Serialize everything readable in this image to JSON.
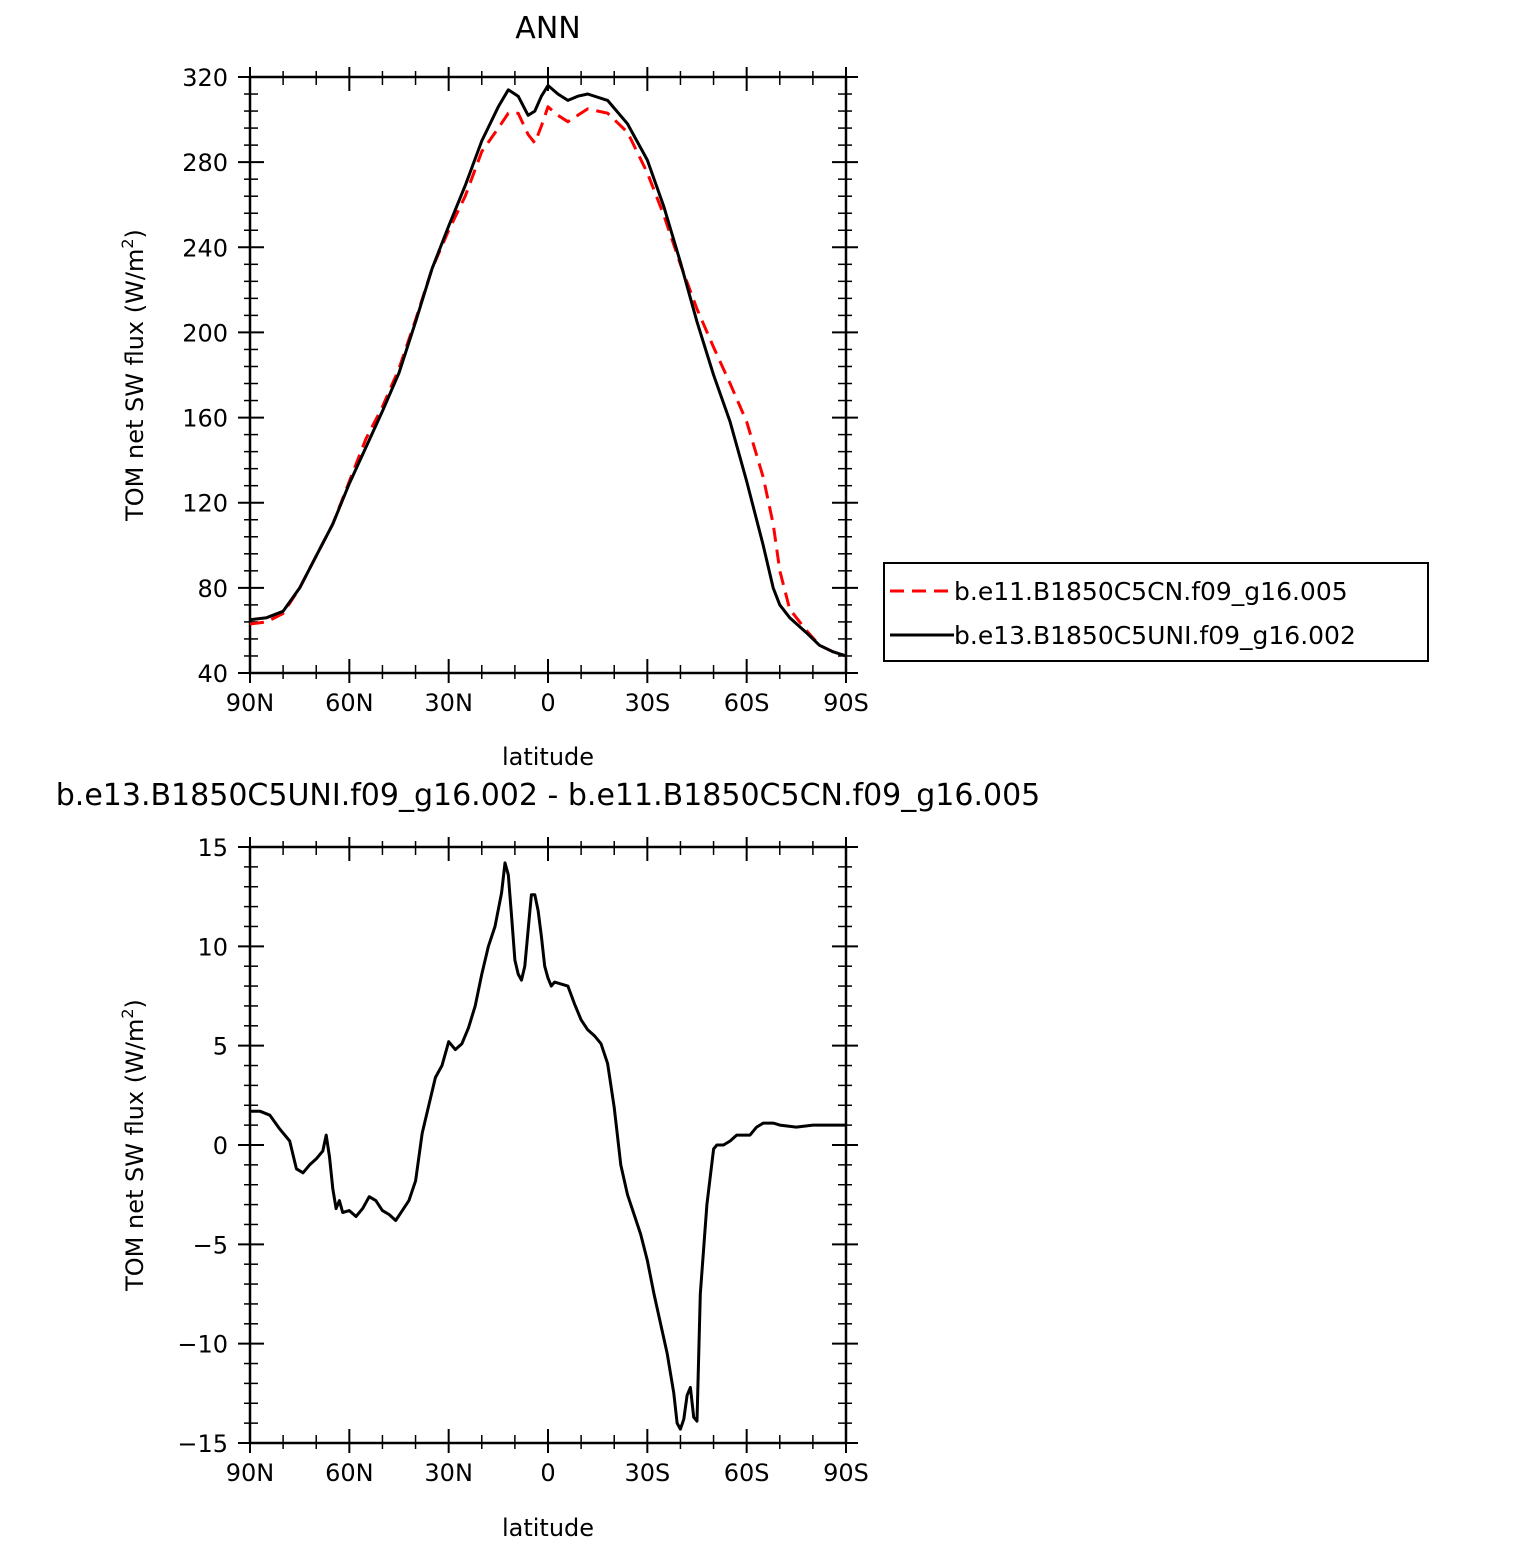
{
  "chart_data": [
    {
      "type": "line",
      "title": "ANN",
      "xlabel": "latitude",
      "ylabel": "TOM net SW flux (W/m²)",
      "ylabel_main": "TOM net SW flux (W/m",
      "ylabel_sup": "2",
      "ylabel_end": ")",
      "xlim": [
        90,
        -90
      ],
      "ylim": [
        40,
        320
      ],
      "xticks": [
        {
          "value": 90,
          "label": "90N"
        },
        {
          "value": 60,
          "label": "60N"
        },
        {
          "value": 30,
          "label": "30N"
        },
        {
          "value": 0,
          "label": "0"
        },
        {
          "value": -30,
          "label": "30S"
        },
        {
          "value": -60,
          "label": "60S"
        },
        {
          "value": -90,
          "label": "90S"
        }
      ],
      "yticks": [
        {
          "value": 320,
          "label": "320"
        },
        {
          "value": 280,
          "label": "280"
        },
        {
          "value": 240,
          "label": "240"
        },
        {
          "value": 200,
          "label": "200"
        },
        {
          "value": 160,
          "label": "160"
        },
        {
          "value": 120,
          "label": "120"
        },
        {
          "value": 80,
          "label": "80"
        },
        {
          "value": 40,
          "label": "40"
        }
      ],
      "legend_position": "right",
      "series": [
        {
          "name": "b.e11.B1850C5CN.f09_g16.005",
          "color": "#ff0000",
          "dash": "dashed",
          "points": [
            [
              90,
              63
            ],
            [
              85,
              64
            ],
            [
              80,
              68
            ],
            [
              75,
              80
            ],
            [
              70,
              95
            ],
            [
              65,
              110
            ],
            [
              60,
              130
            ],
            [
              55,
              150
            ],
            [
              50,
              165
            ],
            [
              45,
              183
            ],
            [
              40,
              206
            ],
            [
              35,
              230
            ],
            [
              30,
              248
            ],
            [
              25,
              264
            ],
            [
              20,
              285
            ],
            [
              15,
              296
            ],
            [
              12,
              303
            ],
            [
              9,
              303
            ],
            [
              6,
              293
            ],
            [
              4,
              289
            ],
            [
              2,
              297
            ],
            [
              0,
              306
            ],
            [
              -3,
              302
            ],
            [
              -6,
              299
            ],
            [
              -9,
              302
            ],
            [
              -12,
              305
            ],
            [
              -18,
              303
            ],
            [
              -24,
              294
            ],
            [
              -30,
              275
            ],
            [
              -35,
              255
            ],
            [
              -40,
              232
            ],
            [
              -45,
              211
            ],
            [
              -50,
              193
            ],
            [
              -55,
              176
            ],
            [
              -60,
              158
            ],
            [
              -65,
              132
            ],
            [
              -68,
              110
            ],
            [
              -70,
              88
            ],
            [
              -73,
              70
            ],
            [
              -78,
              60
            ],
            [
              -82,
              53
            ],
            [
              -86,
              50
            ],
            [
              -90,
              48
            ]
          ]
        },
        {
          "name": "b.e13.B1850C5UNI.f09_g16.002",
          "color": "#000000",
          "dash": "solid",
          "points": [
            [
              90,
              65
            ],
            [
              85,
              66
            ],
            [
              80,
              69
            ],
            [
              75,
              80
            ],
            [
              70,
              95
            ],
            [
              65,
              110
            ],
            [
              60,
              129
            ],
            [
              55,
              146
            ],
            [
              50,
              163
            ],
            [
              45,
              181
            ],
            [
              40,
              205
            ],
            [
              35,
              230
            ],
            [
              30,
              250
            ],
            [
              25,
              269
            ],
            [
              20,
              290
            ],
            [
              15,
              306
            ],
            [
              12,
              314
            ],
            [
              9,
              311
            ],
            [
              6,
              302
            ],
            [
              4,
              304
            ],
            [
              2,
              311
            ],
            [
              0,
              316
            ],
            [
              -3,
              312
            ],
            [
              -6,
              309
            ],
            [
              -9,
              311
            ],
            [
              -12,
              312
            ],
            [
              -18,
              309
            ],
            [
              -24,
              298
            ],
            [
              -30,
              281
            ],
            [
              -35,
              259
            ],
            [
              -40,
              233
            ],
            [
              -45,
              205
            ],
            [
              -50,
              180
            ],
            [
              -55,
              158
            ],
            [
              -60,
              130
            ],
            [
              -65,
              100
            ],
            [
              -68,
              80
            ],
            [
              -70,
              72
            ],
            [
              -73,
              66
            ],
            [
              -78,
              59
            ],
            [
              -82,
              53
            ],
            [
              -86,
              50
            ],
            [
              -90,
              48
            ]
          ]
        }
      ]
    },
    {
      "type": "line",
      "title": "b.e13.B1850C5UNI.f09_g16.002 - b.e11.B1850C5CN.f09_g16.005",
      "xlabel": "latitude",
      "ylabel": "TOM net SW flux (W/m²)",
      "ylabel_main": "TOM net SW flux (W/m",
      "ylabel_sup": "2",
      "ylabel_end": ")",
      "xlim": [
        90,
        -90
      ],
      "ylim": [
        -15,
        15
      ],
      "xticks": [
        {
          "value": 90,
          "label": "90N"
        },
        {
          "value": 60,
          "label": "60N"
        },
        {
          "value": 30,
          "label": "30N"
        },
        {
          "value": 0,
          "label": "0"
        },
        {
          "value": -30,
          "label": "30S"
        },
        {
          "value": -60,
          "label": "60S"
        },
        {
          "value": -90,
          "label": "90S"
        }
      ],
      "yticks": [
        {
          "value": 15,
          "label": "15"
        },
        {
          "value": 10,
          "label": "10"
        },
        {
          "value": 5,
          "label": "5"
        },
        {
          "value": 0,
          "label": "0"
        },
        {
          "value": -5,
          "label": "−5"
        },
        {
          "value": -10,
          "label": "−10"
        },
        {
          "value": -15,
          "label": "−15"
        }
      ],
      "series": [
        {
          "color": "#000000",
          "dash": "solid",
          "points": [
            [
              90,
              1.7
            ],
            [
              87,
              1.7
            ],
            [
              84,
              1.5
            ],
            [
              81,
              0.8
            ],
            [
              78,
              0.2
            ],
            [
              76,
              -1.2
            ],
            [
              74,
              -1.4
            ],
            [
              72,
              -1.0
            ],
            [
              70,
              -0.7
            ],
            [
              68,
              -0.3
            ],
            [
              67,
              0.5
            ],
            [
              66,
              -0.6
            ],
            [
              65,
              -2.2
            ],
            [
              64,
              -3.2
            ],
            [
              63,
              -2.8
            ],
            [
              62,
              -3.4
            ],
            [
              60,
              -3.3
            ],
            [
              58,
              -3.6
            ],
            [
              56,
              -3.2
            ],
            [
              54,
              -2.6
            ],
            [
              52,
              -2.8
            ],
            [
              50,
              -3.3
            ],
            [
              48,
              -3.5
            ],
            [
              46,
              -3.8
            ],
            [
              44,
              -3.3
            ],
            [
              42,
              -2.8
            ],
            [
              40,
              -1.8
            ],
            [
              38,
              0.6
            ],
            [
              36,
              2.0
            ],
            [
              34,
              3.4
            ],
            [
              32,
              4.0
            ],
            [
              30,
              5.2
            ],
            [
              28,
              4.8
            ],
            [
              26,
              5.1
            ],
            [
              24,
              5.9
            ],
            [
              22,
              7.0
            ],
            [
              20,
              8.6
            ],
            [
              18,
              10.0
            ],
            [
              16,
              11.0
            ],
            [
              14,
              12.7
            ],
            [
              13,
              14.2
            ],
            [
              12,
              13.6
            ],
            [
              11,
              11.5
            ],
            [
              10,
              9.3
            ],
            [
              9,
              8.6
            ],
            [
              8,
              8.3
            ],
            [
              7,
              9.0
            ],
            [
              6,
              10.8
            ],
            [
              5,
              12.6
            ],
            [
              4,
              12.6
            ],
            [
              3,
              11.8
            ],
            [
              2,
              10.5
            ],
            [
              1,
              9.0
            ],
            [
              0,
              8.4
            ],
            [
              -1,
              8.0
            ],
            [
              -2,
              8.2
            ],
            [
              -4,
              8.1
            ],
            [
              -6,
              8.0
            ],
            [
              -8,
              7.1
            ],
            [
              -10,
              6.3
            ],
            [
              -12,
              5.8
            ],
            [
              -14,
              5.5
            ],
            [
              -16,
              5.1
            ],
            [
              -18,
              4.1
            ],
            [
              -20,
              1.9
            ],
            [
              -22,
              -1.0
            ],
            [
              -24,
              -2.5
            ],
            [
              -26,
              -3.5
            ],
            [
              -28,
              -4.5
            ],
            [
              -30,
              -5.8
            ],
            [
              -32,
              -7.5
            ],
            [
              -34,
              -9.0
            ],
            [
              -36,
              -10.5
            ],
            [
              -38,
              -12.5
            ],
            [
              -39,
              -14.0
            ],
            [
              -40,
              -14.3
            ],
            [
              -41,
              -13.8
            ],
            [
              -42,
              -12.6
            ],
            [
              -43,
              -12.2
            ],
            [
              -44,
              -13.7
            ],
            [
              -45,
              -13.9
            ],
            [
              -46,
              -7.5
            ],
            [
              -48,
              -3.0
            ],
            [
              -50,
              -0.2
            ],
            [
              -51,
              0.0
            ],
            [
              -53,
              0.0
            ],
            [
              -55,
              0.2
            ],
            [
              -57,
              0.5
            ],
            [
              -59,
              0.5
            ],
            [
              -61,
              0.5
            ],
            [
              -63,
              0.9
            ],
            [
              -65,
              1.1
            ],
            [
              -68,
              1.1
            ],
            [
              -70,
              1.0
            ],
            [
              -75,
              0.9
            ],
            [
              -80,
              1.0
            ],
            [
              -85,
              1.0
            ],
            [
              -90,
              1.0
            ]
          ]
        }
      ]
    }
  ]
}
